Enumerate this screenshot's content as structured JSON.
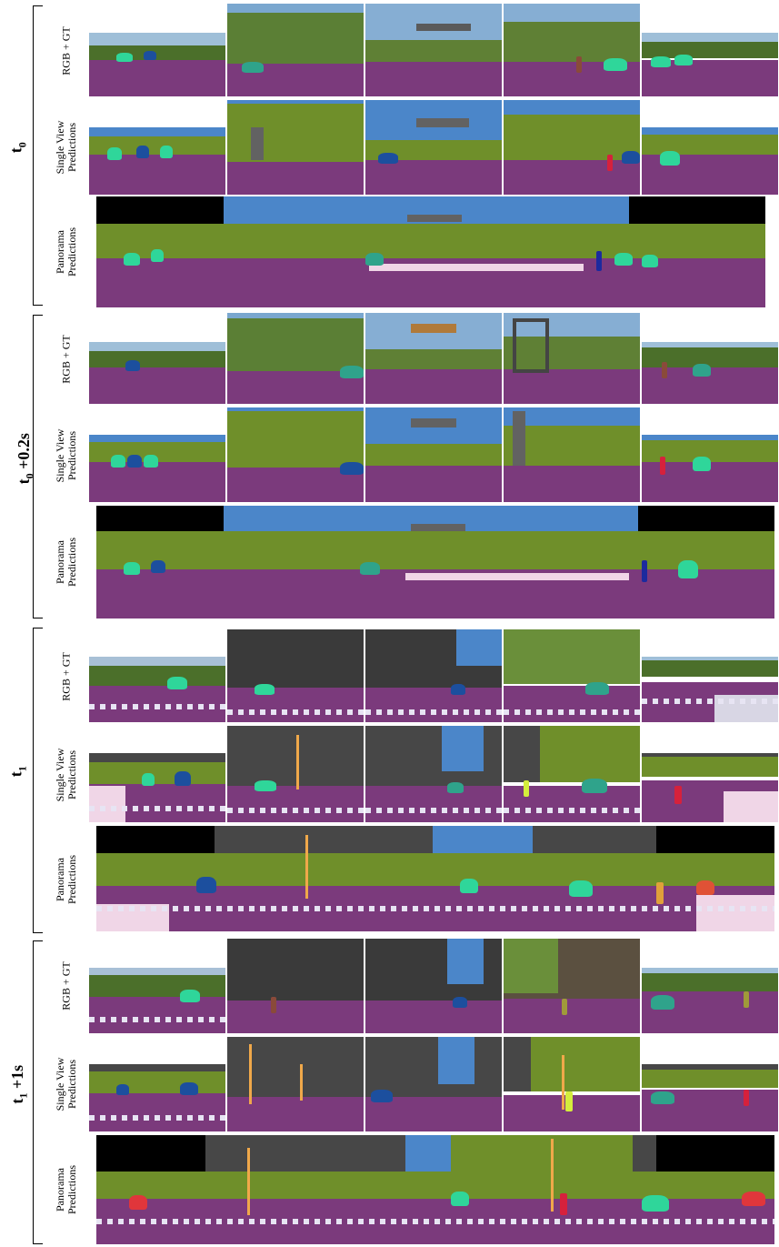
{
  "groups": [
    {
      "time_main": "t",
      "time_sub": "0",
      "time_suffix": ""
    },
    {
      "time_main": "t",
      "time_sub": "0",
      "time_suffix": " +0.2s"
    },
    {
      "time_main": "t",
      "time_sub": "1",
      "time_suffix": ""
    },
    {
      "time_main": "t",
      "time_sub": "1",
      "time_suffix": " +1s"
    }
  ],
  "row_labels": {
    "rgb_gt": "RGB + GT",
    "single_view_line1": "Single View",
    "single_view_line2": "Predictions",
    "panorama_line1": "Panorama",
    "panorama_line2": "Predictions"
  },
  "colors": {
    "road": "#7b3a7c",
    "sky": "#4b86c9",
    "vegetation": "#6f8f2a",
    "building": "#474747",
    "car": "#2fd69a",
    "car_dark": "#1c4f9e",
    "person": "#d6213c",
    "sidewalk": "#f0d6e7",
    "pole": "#f0a84a",
    "sign": "#8a8a8a"
  }
}
